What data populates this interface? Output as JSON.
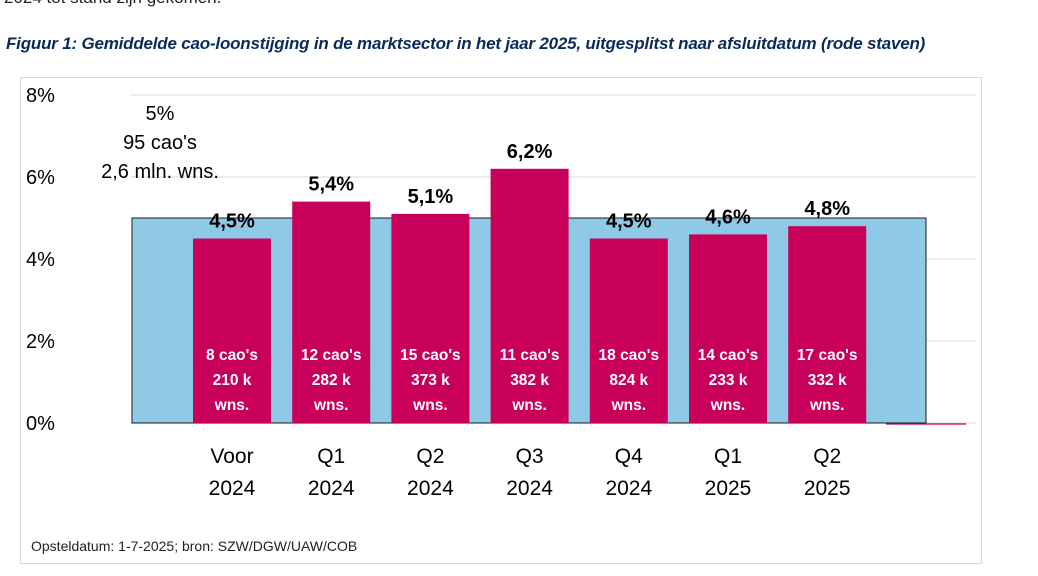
{
  "page": {
    "top_clip_text": "2024 tot stand zijn gekomen.",
    "figure_title": "Figuur 1: Gemiddelde cao-loonstijging in de marktsector in het jaar 2025, uitgesplitst naar afsluitdatum (rode staven)",
    "source_note": "Opsteldatum: 1-7-2025; bron: SZW/DGW/UAW/COB"
  },
  "colors": {
    "background_bar": "#8ecae6",
    "bars": "#c8005a",
    "gridline": "#d9d9d9",
    "title": "#0b2a5c"
  },
  "chart_data": {
    "type": "bar",
    "ylim": [
      0,
      8
    ],
    "y_ticks": [
      "0%",
      "2%",
      "4%",
      "6%",
      "8%"
    ],
    "y_tick_values": [
      0,
      2,
      4,
      6,
      8
    ],
    "grid": true,
    "background_bar": {
      "value": 5.0,
      "label_lines": [
        "5%",
        "95 cao's",
        "2,6 mln. wns."
      ]
    },
    "categories": [
      [
        "Voor",
        "2024"
      ],
      [
        "Q1",
        "2024"
      ],
      [
        "Q2",
        "2024"
      ],
      [
        "Q3",
        "2024"
      ],
      [
        "Q4",
        "2024"
      ],
      [
        "Q1",
        "2025"
      ],
      [
        "Q2",
        "2025"
      ]
    ],
    "values": [
      4.5,
      5.4,
      5.1,
      6.2,
      4.5,
      4.6,
      4.8
    ],
    "value_labels": [
      "4,5%",
      "5,4%",
      "5,1%",
      "6,2%",
      "4,5%",
      "4,6%",
      "4,8%"
    ],
    "bar_labels": [
      [
        "8 cao's",
        "210 k",
        "wns."
      ],
      [
        "12 cao's",
        "282 k",
        "wns."
      ],
      [
        "15 cao's",
        "373 k",
        "wns."
      ],
      [
        "11 cao's",
        "382 k",
        "wns."
      ],
      [
        "18 cao's",
        "824 k",
        "wns."
      ],
      [
        "14 cao's",
        "233 k",
        "wns."
      ],
      [
        "17 cao's",
        "332 k",
        "wns."
      ]
    ]
  }
}
